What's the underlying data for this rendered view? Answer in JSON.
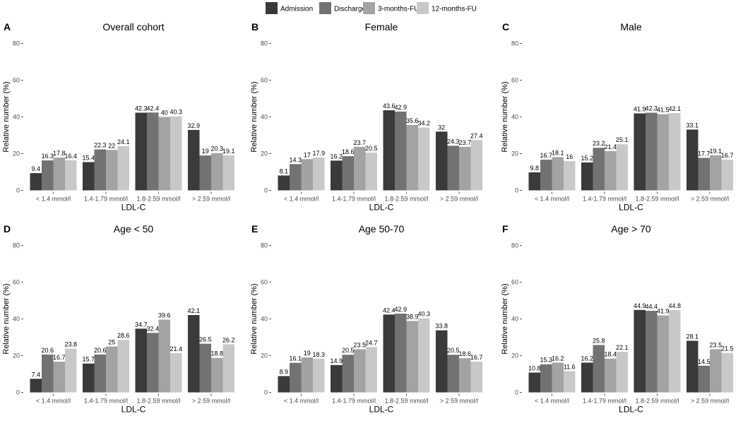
{
  "legend": {
    "items": [
      {
        "label": "Admission",
        "color": "#3a3a3a"
      },
      {
        "label": "Discharge",
        "color": "#727272"
      },
      {
        "label": "3-months-FU",
        "color": "#a3a3a3"
      },
      {
        "label": "12-months-FU",
        "color": "#c8c8c8"
      }
    ]
  },
  "chart_data": [
    {
      "panel": "A",
      "title": "Overall cohort",
      "type": "bar",
      "xlabel": "LDL-C",
      "ylabel": "Relative number (%)",
      "ylim": [
        0,
        80
      ],
      "yticks": [
        0,
        20,
        40,
        60,
        80
      ],
      "categories": [
        "< 1.4 mmol/l",
        "1.4-1.79 mmol/l",
        "1.8-2.59 mmol/l",
        "> 2.59 mmol/l"
      ],
      "series": [
        {
          "name": "Admission",
          "values": [
            9.4,
            15.4,
            42.3,
            32.9
          ]
        },
        {
          "name": "Discharge",
          "values": [
            16.3,
            22.3,
            42.4,
            19
          ]
        },
        {
          "name": "3-months-FU",
          "values": [
            17.8,
            22,
            40,
            20.3
          ]
        },
        {
          "name": "12-months-FU",
          "values": [
            16.4,
            24.1,
            40.3,
            19.1
          ]
        }
      ]
    },
    {
      "panel": "B",
      "title": "Female",
      "type": "bar",
      "xlabel": "LDL-C",
      "ylabel": "Relative number (%)",
      "ylim": [
        0,
        80
      ],
      "yticks": [
        0,
        20,
        40,
        60,
        80
      ],
      "categories": [
        "< 1.4 mmol/l",
        "1.4-1.79 mmol/l",
        "1.8-2.59 mmol/l",
        "> 2.59 mmol/l"
      ],
      "series": [
        {
          "name": "Admission",
          "values": [
            8.1,
            16.2,
            43.6,
            32
          ]
        },
        {
          "name": "Discharge",
          "values": [
            14.3,
            18.6,
            42.9,
            24.3
          ]
        },
        {
          "name": "3-months-FU",
          "values": [
            17,
            23.7,
            35.6,
            23.7
          ]
        },
        {
          "name": "12-months-FU",
          "values": [
            17.9,
            20.5,
            34.2,
            27.4
          ]
        }
      ]
    },
    {
      "panel": "C",
      "title": "Male",
      "type": "bar",
      "xlabel": "LDL-C",
      "ylabel": "Relative number (%)",
      "ylim": [
        0,
        80
      ],
      "yticks": [
        0,
        20,
        40,
        60,
        80
      ],
      "categories": [
        "< 1.4 mmol/l",
        "1.4-1.79 mmol/l",
        "1.8-2.59 mmol/l",
        "> 2.59 mmol/l"
      ],
      "series": [
        {
          "name": "Admission",
          "values": [
            9.8,
            15.2,
            41.9,
            33.1
          ]
        },
        {
          "name": "Discharge",
          "values": [
            16.7,
            23.2,
            42.3,
            17.7
          ]
        },
        {
          "name": "3-months-FU",
          "values": [
            18.1,
            21.4,
            41.5,
            19.1
          ]
        },
        {
          "name": "12-months-FU",
          "values": [
            16,
            25.1,
            42.1,
            16.7
          ]
        }
      ]
    },
    {
      "panel": "D",
      "title": "Age < 50",
      "type": "bar",
      "xlabel": "LDL-C",
      "ylabel": "Relative number (%)",
      "ylim": [
        0,
        80
      ],
      "yticks": [
        0,
        20,
        40,
        60,
        80
      ],
      "categories": [
        "< 1.4 mmol/l",
        "1.4-1.79 mmol/l",
        "1.8-2.59 mmol/l",
        "> 2.59 mmol/l"
      ],
      "series": [
        {
          "name": "Admission",
          "values": [
            7.4,
            15.7,
            34.7,
            42.1
          ]
        },
        {
          "name": "Discharge",
          "values": [
            20.6,
            20.6,
            32.4,
            26.5
          ]
        },
        {
          "name": "3-months-FU",
          "values": [
            16.7,
            25,
            39.6,
            18.8
          ]
        },
        {
          "name": "12-months-FU",
          "values": [
            23.8,
            28.6,
            21.4,
            26.2
          ]
        }
      ]
    },
    {
      "panel": "E",
      "title": "Age 50-70",
      "type": "bar",
      "xlabel": "LDL-C",
      "ylabel": "Relative number (%)",
      "ylim": [
        0,
        80
      ],
      "yticks": [
        0,
        20,
        40,
        60,
        80
      ],
      "categories": [
        "< 1.4 mmol/l",
        "1.4-1.79 mmol/l",
        "1.8-2.59 mmol/l",
        "> 2.59 mmol/l"
      ],
      "series": [
        {
          "name": "Admission",
          "values": [
            8.9,
            14.9,
            42.4,
            33.8
          ]
        },
        {
          "name": "Discharge",
          "values": [
            16.1,
            20.5,
            42.9,
            20.5
          ]
        },
        {
          "name": "3-months-FU",
          "values": [
            19,
            23.5,
            38.9,
            18.6
          ]
        },
        {
          "name": "12-months-FU",
          "values": [
            18.3,
            24.7,
            40.3,
            16.7
          ]
        }
      ]
    },
    {
      "panel": "F",
      "title": "Age > 70",
      "type": "bar",
      "xlabel": "LDL-C",
      "ylabel": "Relative number (%)",
      "ylim": [
        0,
        80
      ],
      "yticks": [
        0,
        20,
        40,
        60,
        80
      ],
      "categories": [
        "< 1.4 mmol/l",
        "1.4-1.79 mmol/l",
        "1.8-2.59 mmol/l",
        "> 2.59 mmol/l"
      ],
      "series": [
        {
          "name": "Admission",
          "values": [
            10.8,
            16.2,
            44.9,
            28.1
          ]
        },
        {
          "name": "Discharge",
          "values": [
            15.3,
            25.8,
            44.4,
            14.5
          ]
        },
        {
          "name": "3-months-FU",
          "values": [
            16.2,
            18.4,
            41.9,
            23.5
          ]
        },
        {
          "name": "12-months-FU",
          "values": [
            11.6,
            22.1,
            44.8,
            21.5
          ]
        }
      ]
    }
  ]
}
